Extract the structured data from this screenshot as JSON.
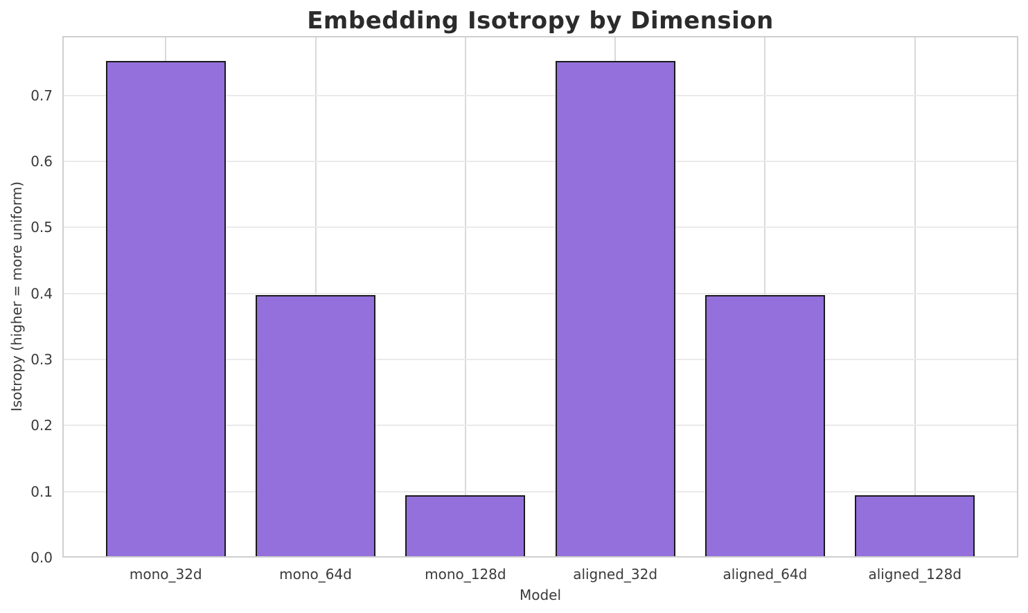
{
  "chart_data": {
    "type": "bar",
    "title": "Embedding Isotropy by Dimension",
    "xlabel": "Model",
    "ylabel": "Isotropy (higher = more uniform)",
    "categories": [
      "mono_32d",
      "mono_64d",
      "mono_128d",
      "aligned_32d",
      "aligned_64d",
      "aligned_128d"
    ],
    "values": [
      0.752,
      0.398,
      0.094,
      0.752,
      0.398,
      0.094
    ],
    "ylim": [
      0,
      0.79
    ],
    "yticks": [
      0.0,
      0.1,
      0.2,
      0.3,
      0.4,
      0.5,
      0.6,
      0.7
    ],
    "ytick_labels": [
      "0.0",
      "0.1",
      "0.2",
      "0.3",
      "0.4",
      "0.5",
      "0.6",
      "0.7"
    ],
    "grid": true,
    "legend": "none",
    "bar_color": "#9370DB",
    "bar_edge_color": "#1a1a1a",
    "bar_width_fraction": 0.8
  }
}
